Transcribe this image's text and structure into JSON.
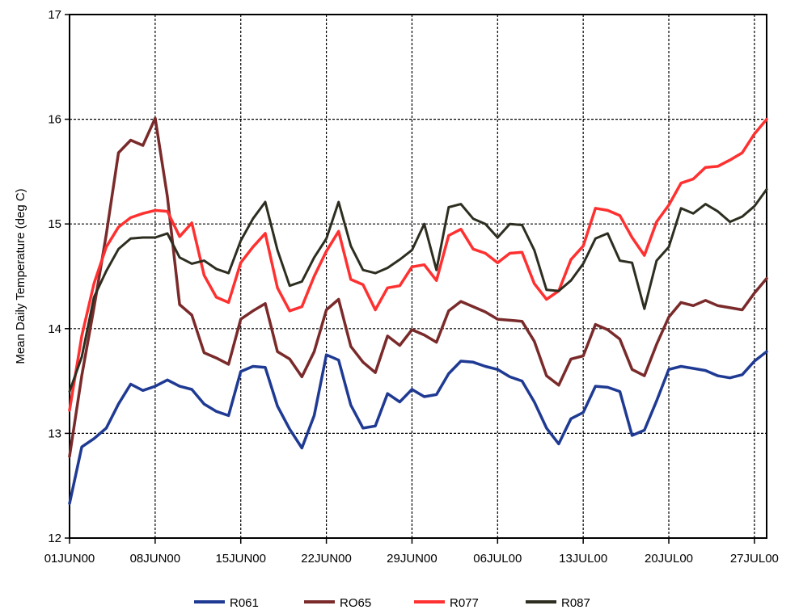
{
  "chart_data": {
    "type": "line",
    "title": "",
    "xlabel": "",
    "ylabel": "Mean Daily Temperature (deg C)",
    "ylim": [
      12,
      17
    ],
    "yticks": [
      12,
      13,
      14,
      15,
      16,
      17
    ],
    "x_tick_labels": [
      "01JUN00",
      "08JUN00",
      "15JUN00",
      "22JUN00",
      "29JUN00",
      "06JUL00",
      "13JUL00",
      "20JUL00",
      "27JUL00"
    ],
    "x_start": "2000-06-01",
    "x_end": "2000-07-27",
    "grid": true,
    "legend_position": "bottom",
    "series": [
      {
        "name": "R061",
        "color": "#1f3a93",
        "values": [
          12.33,
          12.87,
          12.95,
          13.05,
          13.28,
          13.47,
          13.41,
          13.45,
          13.51,
          13.45,
          13.42,
          13.28,
          13.21,
          13.17,
          13.59,
          13.64,
          13.63,
          13.26,
          13.04,
          12.86,
          13.17,
          13.75,
          13.7,
          13.27,
          13.05,
          13.07,
          13.38,
          13.3,
          13.42,
          13.35,
          13.37,
          13.57,
          13.69,
          13.68,
          13.64,
          13.61,
          13.54,
          13.5,
          13.3,
          13.05,
          12.9,
          13.14,
          13.2,
          13.45,
          13.44,
          13.4,
          12.98,
          13.03,
          13.31,
          13.61,
          13.64,
          13.62,
          13.6,
          13.55,
          13.53,
          13.56,
          13.69,
          13.78
        ]
      },
      {
        "name": "RO65",
        "color": "#7a2a2a",
        "values": [
          12.78,
          13.55,
          14.2,
          14.9,
          15.68,
          15.8,
          15.75,
          16.01,
          15.26,
          14.23,
          14.13,
          13.77,
          13.72,
          13.66,
          14.09,
          14.17,
          14.24,
          13.78,
          13.71,
          13.54,
          13.78,
          14.18,
          14.28,
          13.83,
          13.68,
          13.58,
          13.93,
          13.84,
          13.99,
          13.94,
          13.87,
          14.17,
          14.26,
          14.21,
          14.16,
          14.09,
          14.08,
          14.07,
          13.88,
          13.55,
          13.46,
          13.71,
          13.74,
          14.04,
          13.99,
          13.9,
          13.61,
          13.55,
          13.85,
          14.11,
          14.25,
          14.22,
          14.27,
          14.22,
          14.2,
          14.18,
          14.34,
          14.48
        ]
      },
      {
        "name": "R077",
        "color": "#ff3030",
        "values": [
          13.22,
          13.93,
          14.43,
          14.78,
          14.97,
          15.06,
          15.1,
          15.13,
          15.12,
          14.88,
          15.01,
          14.51,
          14.3,
          14.25,
          14.63,
          14.78,
          14.91,
          14.39,
          14.17,
          14.21,
          14.5,
          14.74,
          14.93,
          14.47,
          14.42,
          14.18,
          14.39,
          14.41,
          14.59,
          14.61,
          14.46,
          14.89,
          14.95,
          14.76,
          14.72,
          14.63,
          14.72,
          14.73,
          14.43,
          14.28,
          14.36,
          14.66,
          14.79,
          15.15,
          15.13,
          15.08,
          14.87,
          14.7,
          15.02,
          15.18,
          15.39,
          15.43,
          15.54,
          15.55,
          15.61,
          15.68,
          15.86,
          16.0
        ]
      },
      {
        "name": "R087",
        "color": "#2d2d20",
        "values": [
          13.4,
          13.73,
          14.3,
          14.55,
          14.76,
          14.86,
          14.87,
          14.87,
          14.91,
          14.68,
          14.62,
          14.65,
          14.57,
          14.53,
          14.84,
          15.05,
          15.21,
          14.75,
          14.41,
          14.45,
          14.68,
          14.86,
          15.21,
          14.79,
          14.56,
          14.53,
          14.58,
          14.66,
          14.75,
          15.0,
          14.56,
          15.16,
          15.19,
          15.05,
          15.0,
          14.87,
          15.0,
          14.99,
          14.75,
          14.37,
          14.36,
          14.46,
          14.62,
          14.86,
          14.91,
          14.65,
          14.63,
          14.19,
          14.65,
          14.78,
          15.15,
          15.1,
          15.19,
          15.12,
          15.02,
          15.07,
          15.17,
          15.33
        ]
      }
    ]
  }
}
